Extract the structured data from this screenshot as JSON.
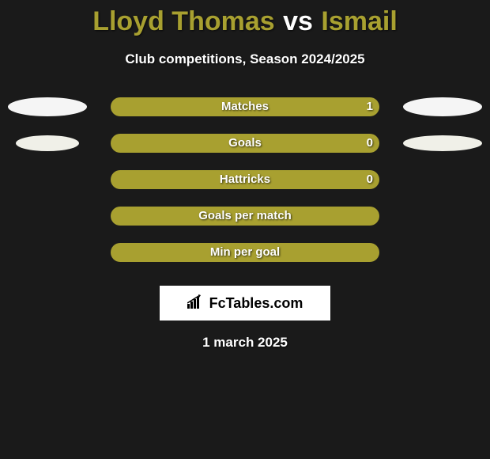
{
  "title": {
    "player1": "Lloyd Thomas",
    "vs": "vs",
    "player2": "Ismail",
    "player_color": "#a8a030",
    "vs_color": "#ffffff"
  },
  "subtitle": "Club competitions, Season 2024/2025",
  "colors": {
    "background": "#1a1a1a",
    "bar_fill": "#a8a030",
    "pill_white": "#f5f5f5",
    "pill_dark": "#a0a090",
    "text": "#ffffff"
  },
  "stats": [
    {
      "label": "Matches",
      "left_val": "",
      "right_val": "1",
      "left_pill_color": "#f5f5f5",
      "right_pill_color": "#f5f5f5",
      "left_pill_show": true,
      "right_pill_show": true,
      "left_pill_w": 100,
      "right_pill_w": 100
    },
    {
      "label": "Goals",
      "left_val": "",
      "right_val": "0",
      "left_pill_color": "#f0f0e8",
      "right_pill_color": "#f0f0e8",
      "left_pill_show": true,
      "right_pill_show": true,
      "left_pill_w": 80,
      "right_pill_w": 100
    },
    {
      "label": "Hattricks",
      "left_val": "",
      "right_val": "0",
      "left_pill_color": "",
      "right_pill_color": "",
      "left_pill_show": false,
      "right_pill_show": false,
      "left_pill_w": 0,
      "right_pill_w": 0
    },
    {
      "label": "Goals per match",
      "left_val": "",
      "right_val": "",
      "left_pill_color": "",
      "right_pill_color": "",
      "left_pill_show": false,
      "right_pill_show": false,
      "left_pill_w": 0,
      "right_pill_w": 0
    },
    {
      "label": "Min per goal",
      "left_val": "",
      "right_val": "",
      "left_pill_color": "",
      "right_pill_color": "",
      "left_pill_show": false,
      "right_pill_show": false,
      "left_pill_w": 0,
      "right_pill_w": 0
    }
  ],
  "logo": {
    "text": "FcTables.com",
    "icon_glyph": "chart-bars"
  },
  "footer_date": "1 march 2025"
}
